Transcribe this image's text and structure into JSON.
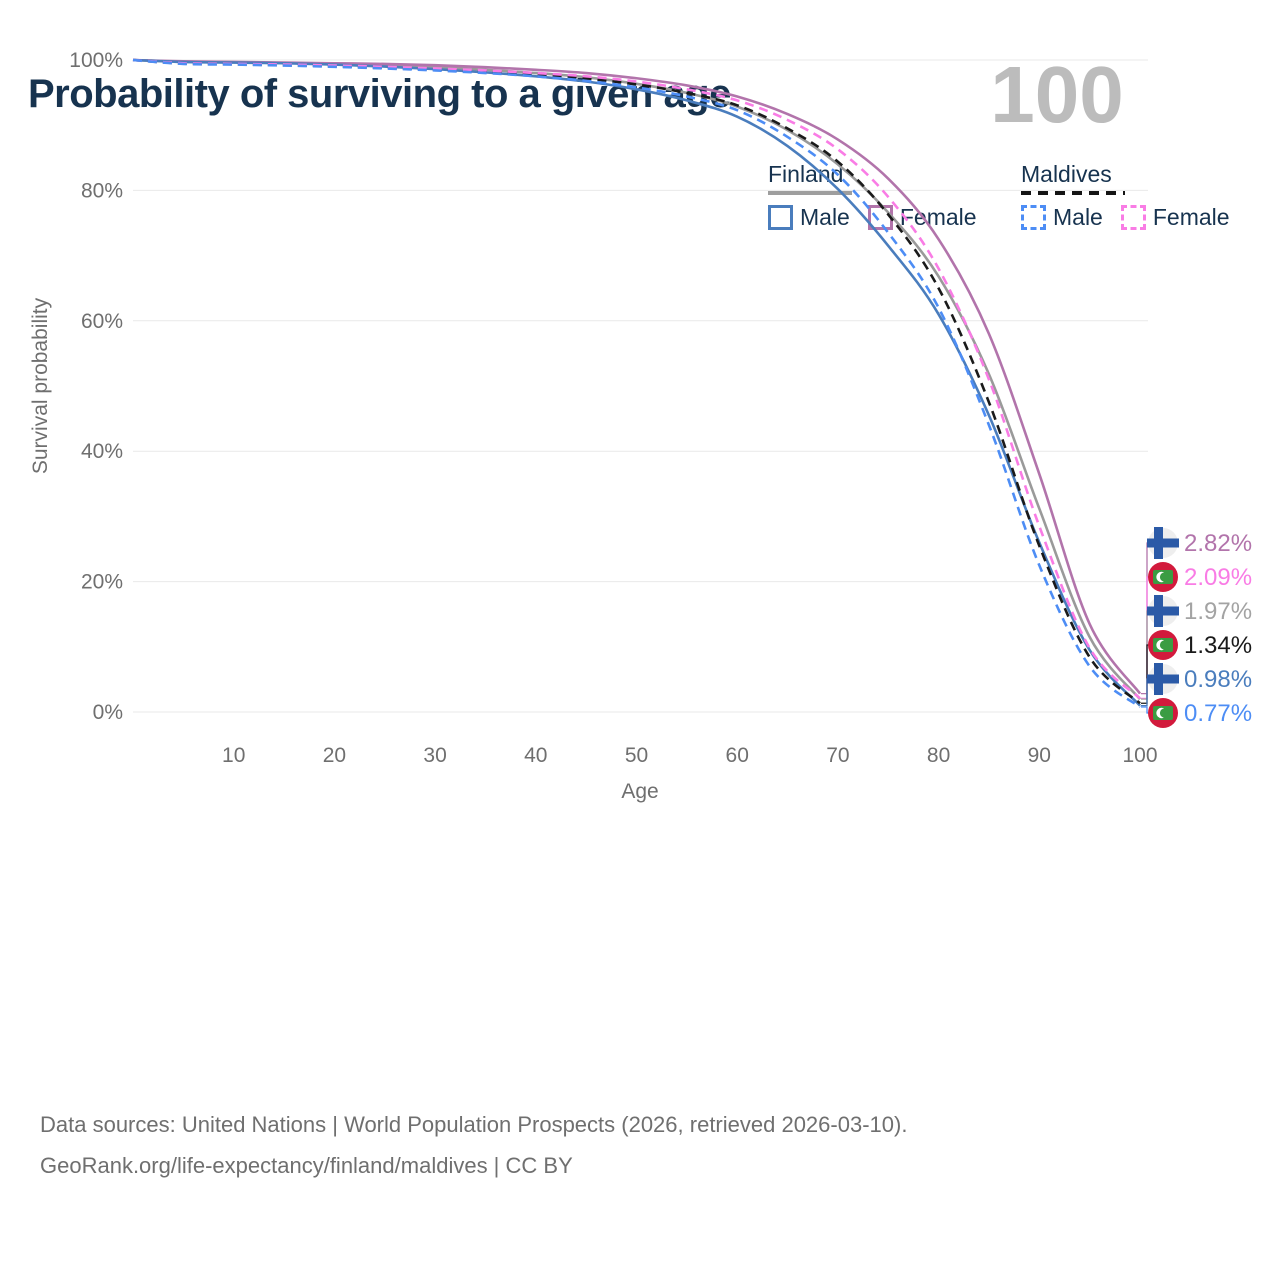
{
  "title": "Probability of surviving to a given age",
  "watermark": "100",
  "legend": {
    "groups": [
      {
        "name": "Finland",
        "style": "solid",
        "items": [
          {
            "label": "Male",
            "color": "#4a7dbd"
          },
          {
            "label": "Female",
            "color": "#b274ab"
          }
        ]
      },
      {
        "name": "Maldives",
        "style": "dashed",
        "items": [
          {
            "label": "Male",
            "color": "#4d8df5"
          },
          {
            "label": "Female",
            "color": "#f97ce5"
          }
        ]
      }
    ]
  },
  "chart_data": {
    "type": "line",
    "title": "Probability of surviving to a given age",
    "xlabel": "Age",
    "ylabel": "Survival probability",
    "xlim": [
      0,
      100
    ],
    "ylim": [
      0,
      100
    ],
    "grid": "horizontal",
    "x_ticks": [
      10,
      20,
      30,
      40,
      50,
      60,
      70,
      80,
      90,
      100
    ],
    "y_ticks": [
      "0%",
      "20%",
      "40%",
      "60%",
      "80%",
      "100%"
    ],
    "y_tick_values": [
      0,
      20,
      40,
      60,
      80,
      100
    ],
    "x": [
      0,
      5,
      10,
      15,
      20,
      25,
      30,
      35,
      40,
      45,
      50,
      55,
      60,
      65,
      70,
      75,
      80,
      85,
      90,
      95,
      100
    ],
    "series": [
      {
        "name": "Finland Total",
        "country": "Finland",
        "sex": "Both",
        "color": "#9a9a9a",
        "dash": false,
        "values": [
          100,
          99.75,
          99.65,
          99.55,
          99.4,
          99.2,
          98.9,
          98.5,
          98.0,
          97.35,
          96.35,
          94.95,
          92.85,
          89.25,
          84.0,
          76.6,
          66.8,
          51.8,
          31.2,
          11.5,
          1.97
        ]
      },
      {
        "name": "Finland Female",
        "country": "Finland",
        "sex": "Female",
        "color": "#b274ab",
        "dash": false,
        "values": [
          100,
          99.8,
          99.7,
          99.6,
          99.5,
          99.4,
          99.2,
          98.9,
          98.5,
          98.0,
          97.2,
          96.1,
          94.4,
          91.7,
          87.8,
          81.8,
          72.5,
          58.0,
          36.5,
          13.5,
          2.82
        ]
      },
      {
        "name": "Finland Male",
        "country": "Finland",
        "sex": "Male",
        "color": "#4a7dbd",
        "dash": false,
        "values": [
          100,
          99.7,
          99.6,
          99.5,
          99.3,
          99.0,
          98.6,
          98.1,
          97.5,
          96.7,
          95.5,
          93.8,
          91.3,
          86.8,
          80.2,
          71.5,
          61.0,
          45.5,
          26.0,
          9.5,
          0.98
        ]
      },
      {
        "name": "Maldives Total",
        "country": "Maldives",
        "sex": "Both",
        "color": "#1a1a1a",
        "dash": true,
        "values": [
          100,
          99.45,
          99.35,
          99.2,
          99.05,
          98.8,
          98.55,
          98.2,
          97.75,
          97.15,
          96.25,
          94.95,
          93.05,
          89.5,
          84.4,
          76.3,
          65.0,
          47.5,
          25.5,
          8.4,
          1.34
        ]
      },
      {
        "name": "Maldives Female",
        "country": "Maldives",
        "sex": "Female",
        "color": "#f97ce5",
        "dash": true,
        "values": [
          100,
          99.5,
          99.4,
          99.3,
          99.15,
          98.95,
          98.7,
          98.4,
          98.0,
          97.5,
          96.7,
          95.5,
          93.8,
          90.8,
          86.3,
          79.0,
          68.0,
          51.0,
          28.5,
          9.8,
          2.09
        ]
      },
      {
        "name": "Maldives Male",
        "country": "Maldives",
        "sex": "Male",
        "color": "#4d8df5",
        "dash": true,
        "values": [
          100,
          99.4,
          99.3,
          99.15,
          98.95,
          98.7,
          98.4,
          98.0,
          97.5,
          96.8,
          95.8,
          94.4,
          92.3,
          88.2,
          82.4,
          73.5,
          62.0,
          44.0,
          22.5,
          7.0,
          0.77
        ]
      }
    ],
    "end_labels": [
      {
        "flag": "finland",
        "series": "Finland Female",
        "text": "2.82%",
        "value": 2.82,
        "color": "#b274ab"
      },
      {
        "flag": "maldives",
        "series": "Maldives Female",
        "text": "2.09%",
        "value": 2.09,
        "color": "#f97ce5"
      },
      {
        "flag": "finland",
        "series": "Finland Total",
        "text": "1.97%",
        "value": 1.97,
        "color": "#a3a3a3"
      },
      {
        "flag": "maldives",
        "series": "Maldives Total",
        "text": "1.34%",
        "value": 1.34,
        "color": "#1a1a1a"
      },
      {
        "flag": "finland",
        "series": "Finland Male",
        "text": "0.98%",
        "value": 0.98,
        "color": "#4a7dbd"
      },
      {
        "flag": "maldives",
        "series": "Maldives Male",
        "text": "0.77%",
        "value": 0.77,
        "color": "#4d8df5"
      }
    ],
    "annotation_age": "100"
  },
  "footer": {
    "line1": "Data sources: United Nations | World Population Prospects (2026, retrieved 2026-03-10).",
    "line2": "GeoRank.org/life-expectancy/finland/maldives | CC BY"
  },
  "colors": {
    "title_text": "#17334f",
    "axis_text": "#6f6f6f",
    "gridline": "#e9e9e9",
    "watermark": "#bcbcbc",
    "finland_flag_blue": "#2b5aa7",
    "finland_flag_bg": "#eeeeee",
    "maldives_flag_red": "#d21a3c",
    "maldives_flag_green": "#3b9c43"
  }
}
